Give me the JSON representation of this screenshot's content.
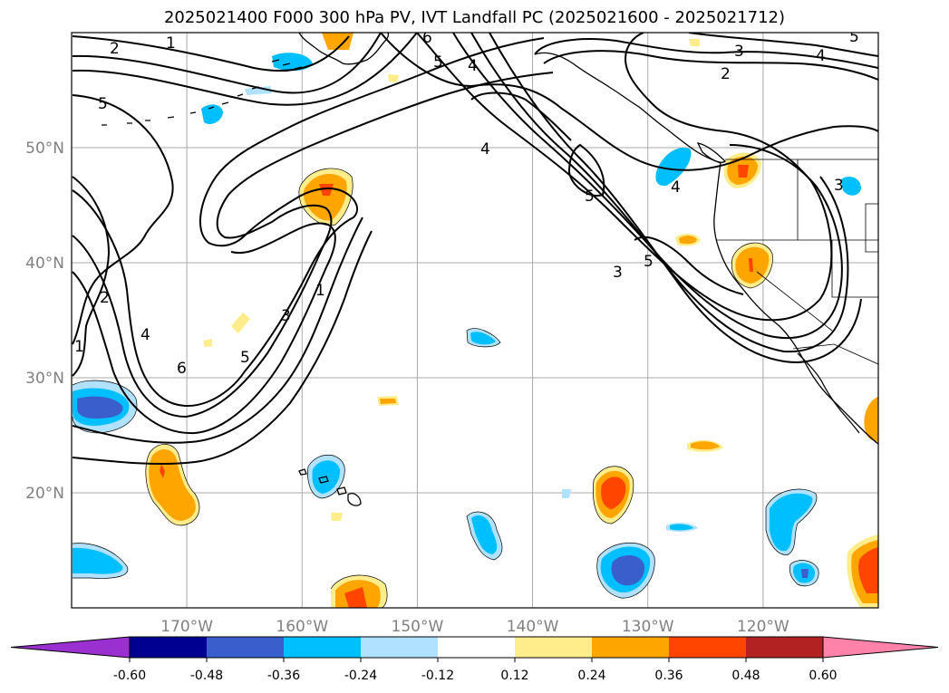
{
  "title": "2025021400 F000 300 hPa PV, IVT Landfall PC (2025021600 - 2025021712)",
  "map": {
    "lon_range": [
      -180,
      -110
    ],
    "lat_range": [
      10,
      60
    ],
    "lat_ticks": [
      {
        "value": 20,
        "label": "20°N"
      },
      {
        "value": 30,
        "label": "30°N"
      },
      {
        "value": 40,
        "label": "40°N"
      },
      {
        "value": 50,
        "label": "50°N"
      }
    ],
    "lon_ticks": [
      {
        "value": -170,
        "label": "170°W"
      },
      {
        "value": -160,
        "label": "160°W"
      },
      {
        "value": -150,
        "label": "150°W"
      },
      {
        "value": -140,
        "label": "140°W"
      },
      {
        "value": -130,
        "label": "130°W"
      },
      {
        "value": -120,
        "label": "120°W"
      }
    ],
    "grid": true
  },
  "colorbar": {
    "levels": [
      "-0.60",
      "-0.48",
      "-0.36",
      "-0.24",
      "-0.12",
      "0.12",
      "0.24",
      "0.36",
      "0.48",
      "0.60"
    ],
    "colors": [
      "#9b30d0",
      "#000090",
      "#3a5fcd",
      "#00bfff",
      "#b0e2ff",
      "#ffffff",
      "#ffec8b",
      "#ffa500",
      "#ff4500",
      "#b22222",
      "#ff82ab"
    ],
    "extend": "both"
  },
  "contour_labels": [
    {
      "text": "2"
    },
    {
      "text": "1"
    },
    {
      "text": "5"
    },
    {
      "text": "4"
    },
    {
      "text": "6"
    },
    {
      "text": "3"
    },
    {
      "text": "5"
    },
    {
      "text": "4"
    },
    {
      "text": "2"
    },
    {
      "text": "3"
    },
    {
      "text": "4"
    },
    {
      "text": "4"
    },
    {
      "text": "5"
    },
    {
      "text": "3"
    },
    {
      "text": "5"
    },
    {
      "text": "2"
    },
    {
      "text": "1"
    },
    {
      "text": "4"
    },
    {
      "text": "6"
    },
    {
      "text": "5"
    },
    {
      "text": "3"
    },
    {
      "text": "1"
    },
    {
      "text": "5"
    }
  ]
}
